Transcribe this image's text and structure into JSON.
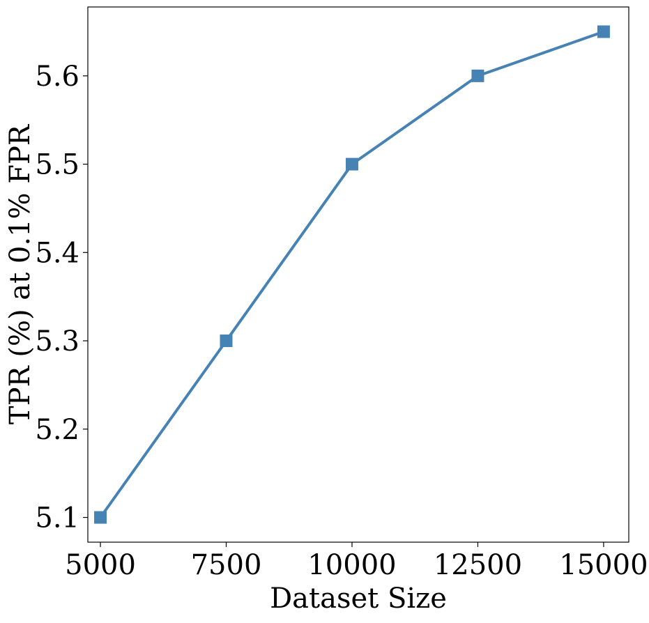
{
  "chart_data": {
    "type": "line",
    "title": "",
    "xlabel": "Dataset Size",
    "ylabel": "TPR (%) at 0.1% FPR",
    "x": [
      5000,
      7500,
      10000,
      12500,
      15000
    ],
    "xticks": [
      "5000",
      "7500",
      "10000",
      "12500",
      "15000"
    ],
    "yticks": [
      "5.1",
      "5.2",
      "5.3",
      "5.4",
      "5.5",
      "5.6"
    ],
    "xlim": [
      4750,
      15500
    ],
    "ylim": [
      5.072,
      5.678
    ],
    "grid": false,
    "series": [
      {
        "name": "",
        "values": [
          5.1,
          5.3,
          5.5,
          5.6,
          5.65
        ],
        "color": "#4682b4",
        "marker": "square"
      }
    ]
  }
}
